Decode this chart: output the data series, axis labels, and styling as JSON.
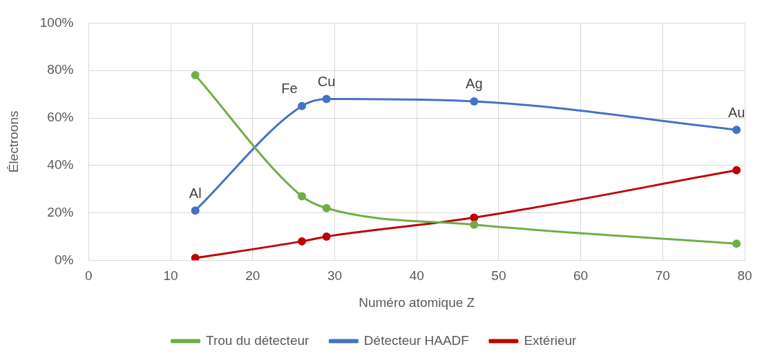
{
  "chart_data": {
    "type": "line",
    "xlabel": "Numéro atomique Z",
    "ylabel": "Électroons",
    "xlim": [
      0,
      80
    ],
    "xticks": [
      0,
      10,
      20,
      30,
      40,
      50,
      60,
      70,
      80
    ],
    "ylim": [
      0,
      100
    ],
    "yticks": [
      {
        "value": 0,
        "label": "0%"
      },
      {
        "value": 20,
        "label": "20%"
      },
      {
        "value": 40,
        "label": "40%"
      },
      {
        "value": 60,
        "label": "60%"
      },
      {
        "value": 80,
        "label": "80%"
      },
      {
        "value": 100,
        "label": "100%"
      }
    ],
    "x": [
      13,
      26,
      29,
      47,
      79
    ],
    "series": [
      {
        "name": "Trou du détecteur",
        "color": "#70ad47",
        "values": [
          78,
          27,
          22,
          15,
          7
        ]
      },
      {
        "name": "Détecteur HAADF",
        "color": "#4472c4",
        "values": [
          21,
          65,
          68,
          67,
          55
        ]
      },
      {
        "name": "Extérieur",
        "color": "#c00000",
        "values": [
          1,
          8,
          10,
          18,
          38
        ]
      }
    ],
    "annotations": [
      {
        "text": "Al",
        "x": 13,
        "y": 21
      },
      {
        "text": "Fe",
        "x": 26,
        "y": 65
      },
      {
        "text": "Cu",
        "x": 29,
        "y": 68
      },
      {
        "text": "Ag",
        "x": 47,
        "y": 67
      },
      {
        "text": "Au",
        "x": 79,
        "y": 55
      }
    ],
    "grid": true,
    "legend": "bottom",
    "marker": "circle",
    "line_style": "solid"
  }
}
